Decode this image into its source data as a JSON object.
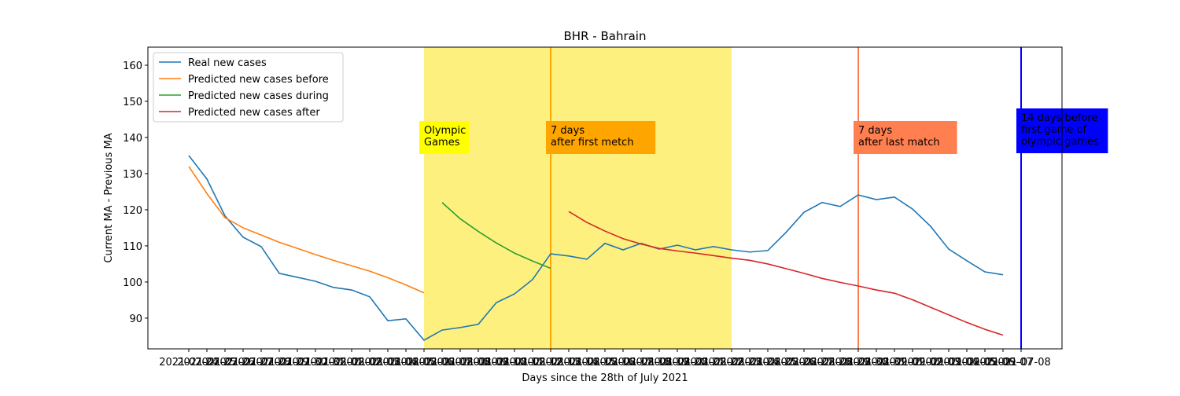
{
  "chart_data": {
    "type": "line",
    "title": "BHR - Bahrain",
    "xlabel": "Days since the 28th of July 2021",
    "ylabel": "Current MA - Previous MA",
    "categories": [
      "2021-07-24",
      "2021-07-25",
      "2021-07-26",
      "2021-07-27",
      "2021-07-28",
      "2021-07-29",
      "2021-07-30",
      "2021-07-31",
      "2021-08-01",
      "2021-08-02",
      "2021-08-03",
      "2021-08-04",
      "2021-08-05",
      "2021-08-06",
      "2021-08-07",
      "2021-08-08",
      "2021-08-09",
      "2021-08-10",
      "2021-08-11",
      "2021-08-12",
      "2021-08-13",
      "2021-08-14",
      "2021-08-15",
      "2021-08-16",
      "2021-08-17",
      "2021-08-18",
      "2021-08-19",
      "2021-08-20",
      "2021-08-21",
      "2021-08-22",
      "2021-08-23",
      "2021-08-24",
      "2021-08-25",
      "2021-08-26",
      "2021-08-27",
      "2021-08-28",
      "2021-08-29",
      "2021-08-30",
      "2021-08-31",
      "2021-09-01",
      "2021-09-02",
      "2021-09-03",
      "2021-09-04",
      "2021-09-05",
      "2021-09-06",
      "2021-09-07",
      "2021-07-08"
    ],
    "series": [
      {
        "name": "Real new cases",
        "color": "#1f77b4",
        "values": [
          135.0,
          128.5,
          118.3,
          112.4,
          109.8,
          102.4,
          101.3,
          100.2,
          98.5,
          97.8,
          95.9,
          89.3,
          89.8,
          83.9,
          86.7,
          87.4,
          88.3,
          94.3,
          96.7,
          100.7,
          107.8,
          107.2,
          106.3,
          110.7,
          108.9,
          110.7,
          109.1,
          110.2,
          108.9,
          109.8,
          108.9,
          108.3,
          108.7,
          113.7,
          119.3,
          122.0,
          120.9,
          124.1,
          122.8,
          123.5,
          120.2,
          115.4,
          109.1,
          105.9,
          102.8,
          102.0,
          null
        ]
      },
      {
        "name": "Predicted new cases before",
        "color": "#ff7f0e",
        "values": [
          132.0,
          124.5,
          117.8,
          115.0,
          113.0,
          111.0,
          109.3,
          107.6,
          106.0,
          104.5,
          103.0,
          101.2,
          99.2,
          97.0,
          null,
          null,
          null,
          null,
          null,
          null,
          null,
          null,
          null,
          null,
          null,
          null,
          null,
          null,
          null,
          null,
          null,
          null,
          null,
          null,
          null,
          null,
          null,
          null,
          null,
          null,
          null,
          null,
          null,
          null,
          null,
          null,
          null
        ]
      },
      {
        "name": "Predicted new cases during",
        "color": "#2ca02c",
        "values": [
          null,
          null,
          null,
          null,
          null,
          null,
          null,
          null,
          null,
          null,
          null,
          null,
          null,
          null,
          122.0,
          117.5,
          114.0,
          110.8,
          108.0,
          105.8,
          103.8,
          null,
          null,
          null,
          null,
          null,
          null,
          null,
          null,
          null,
          null,
          null,
          null,
          null,
          null,
          null,
          null,
          null,
          null,
          null,
          null,
          null,
          null,
          null,
          null,
          null,
          null
        ]
      },
      {
        "name": "Predicted new cases after",
        "color": "#d62728",
        "values": [
          null,
          null,
          null,
          null,
          null,
          null,
          null,
          null,
          null,
          null,
          null,
          null,
          null,
          null,
          null,
          null,
          null,
          null,
          null,
          null,
          null,
          119.5,
          116.5,
          114.1,
          112.0,
          110.5,
          109.3,
          108.6,
          108.0,
          107.3,
          106.6,
          106.0,
          105.0,
          103.7,
          102.4,
          101.0,
          99.9,
          98.9,
          97.8,
          96.9,
          95.1,
          93.0,
          90.9,
          88.8,
          86.9,
          85.3,
          null
        ]
      }
    ],
    "ylim": [
      81.5,
      165
    ],
    "yticks": [
      90,
      100,
      110,
      120,
      130,
      140,
      150,
      160
    ],
    "legend": "upper left",
    "span": {
      "from": 13,
      "to": 30,
      "color": "#fdf07f"
    },
    "events": [
      {
        "x": 13,
        "lines": [
          "Olympic",
          "Games"
        ],
        "color": "#ffff00",
        "text_color": "#000000",
        "line": false
      },
      {
        "x": 20,
        "lines": [
          "7 days",
          "after first metch"
        ],
        "color": "#ffa500",
        "text_color": "#000000",
        "line": true
      },
      {
        "x": 37,
        "lines": [
          "7 days",
          "after last match"
        ],
        "color": "#ff7f50",
        "text_color": "#000000",
        "line": true
      },
      {
        "x": 46,
        "lines": [
          "14 days before",
          "first game of",
          "olympic games"
        ],
        "color": "#0000ff",
        "text_color": "#ffffff",
        "line": true
      }
    ]
  }
}
